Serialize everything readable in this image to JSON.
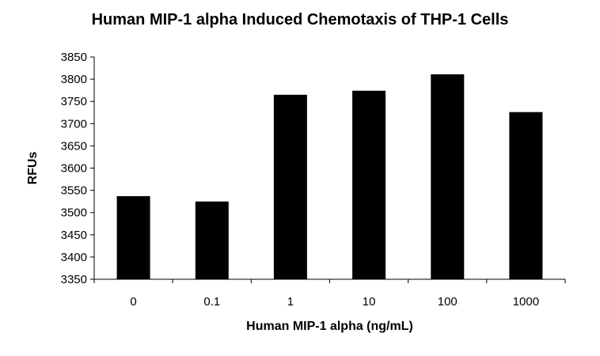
{
  "chart_data": {
    "type": "bar",
    "title": "Human MIP-1 alpha Induced Chemotaxis of THP-1 Cells",
    "xlabel": "Human MIP-1 alpha (ng/mL)",
    "ylabel": "RFUs",
    "categories": [
      "0",
      "0.1",
      "1",
      "10",
      "100",
      "1000"
    ],
    "values": [
      3537,
      3525,
      3765,
      3774,
      3811,
      3726
    ],
    "ylim": [
      3350,
      3850
    ],
    "yticks": [
      3350,
      3400,
      3450,
      3500,
      3550,
      3600,
      3650,
      3700,
      3750,
      3800,
      3850
    ],
    "bar_color": "#000000",
    "grid": false,
    "legend": "none"
  }
}
